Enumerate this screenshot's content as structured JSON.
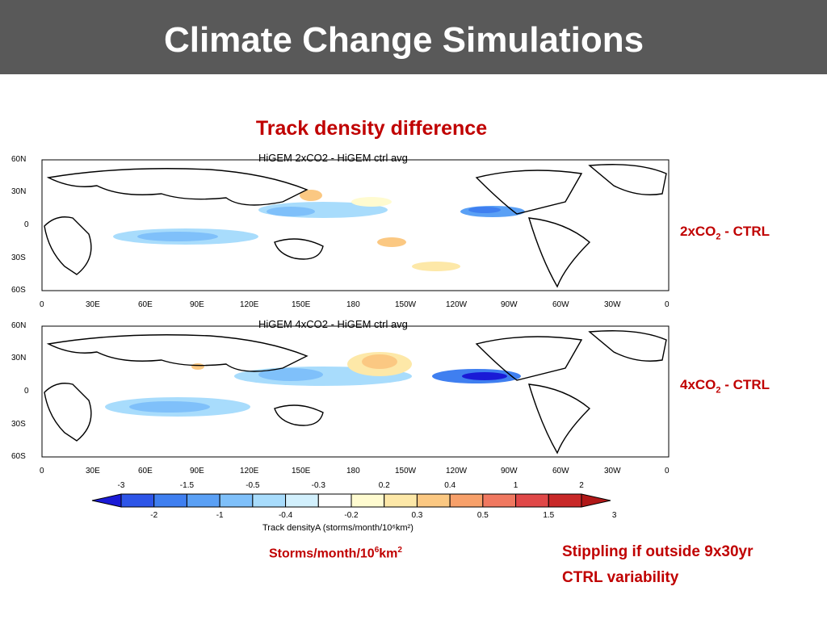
{
  "slide": {
    "title": "Climate Change Simulations",
    "subtitle": "Track density difference"
  },
  "panels": [
    {
      "map_title": "HiGEM 2xCO2 - HiGEM ctrl avg",
      "label_main": "2xCO",
      "label_sub": "2",
      "label_rest": " - CTRL"
    },
    {
      "map_title": "HiGEM 4xCO2 - HiGEM ctrl avg",
      "label_main": "4xCO",
      "label_sub": "2",
      "label_rest": " - CTRL"
    }
  ],
  "axes": {
    "lat_labels": [
      "60N",
      "30N",
      "0",
      "30S",
      "60S"
    ],
    "lon_labels": [
      "0",
      "30E",
      "60E",
      "90E",
      "120E",
      "150E",
      "180",
      "150W",
      "120W",
      "90W",
      "60W",
      "30W",
      "0"
    ]
  },
  "colorbar": {
    "top_labels": [
      "-3",
      "-1.5",
      "-0.5",
      "-0.3",
      "0.2",
      "0.4",
      "1",
      "2"
    ],
    "bottom_labels": [
      "-2",
      "-1",
      "-0.4",
      "-0.2",
      "0.3",
      "0.5",
      "1.5",
      "3"
    ],
    "caption": "Track densityA (storms/month/10⁶km²)",
    "colors": [
      "#1a1ad6",
      "#2d55e8",
      "#3f7ff0",
      "#5aa0f5",
      "#7fc0fa",
      "#a8dcfc",
      "#d2f0fd",
      "#ffffff",
      "#fffbd0",
      "#fde8a8",
      "#fbc882",
      "#f7a06a",
      "#f07860",
      "#e04848",
      "#c82828",
      "#b01818"
    ]
  },
  "notes": {
    "units_main": "Storms/month/10",
    "units_sup": "6",
    "units_end": "km",
    "units_sup2": "2",
    "stippling_line1": "Stippling if outside 9x30yr",
    "stippling_line2": "CTRL variability"
  }
}
